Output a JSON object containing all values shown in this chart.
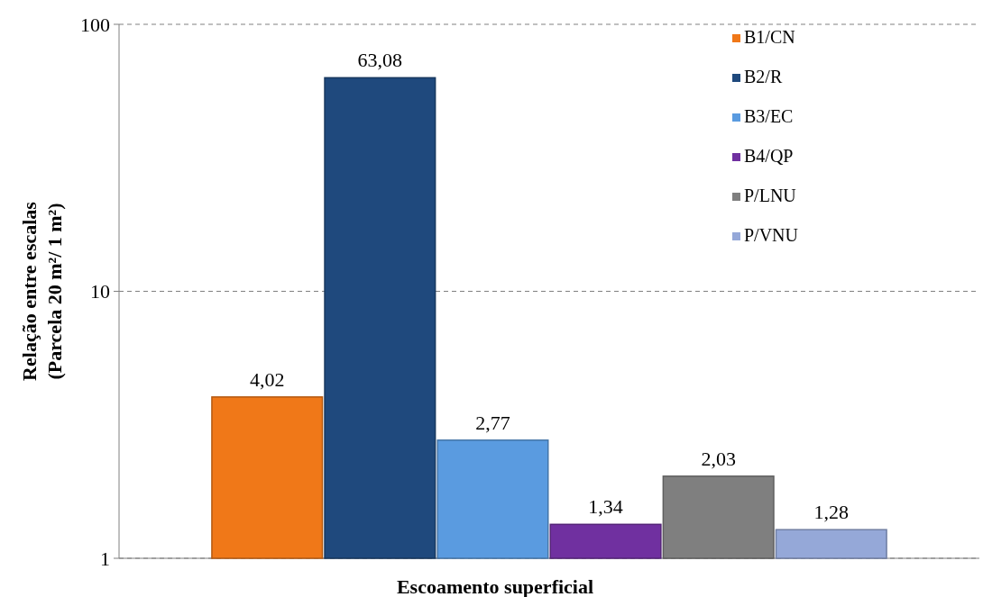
{
  "chart_data": {
    "type": "bar",
    "xlabel": "Escoamento superficial",
    "ylabel": "Relação entre escalas\n(Parcela 20 m²/ 1 m²)",
    "categories": [
      null
    ],
    "log": true,
    "ylim": [
      1,
      100
    ],
    "yticks": [
      1,
      10,
      100
    ],
    "grid": "y",
    "legend": "top right",
    "series": [
      {
        "name": "B1/CN",
        "color": "#f07818",
        "values": [
          4.02
        ],
        "value_labels": [
          "4,02"
        ]
      },
      {
        "name": "B2/R",
        "color": "#1f497d",
        "values": [
          63.08
        ],
        "value_labels": [
          "63,08"
        ]
      },
      {
        "name": "B3/EC",
        "color": "#5a9be0",
        "values": [
          2.77
        ],
        "value_labels": [
          "2,77"
        ]
      },
      {
        "name": "B4/QP",
        "color": "#7030a0",
        "values": [
          1.34
        ],
        "value_labels": [
          "1,34"
        ]
      },
      {
        "name": "P/LNU",
        "color": "#7f7f7f",
        "values": [
          2.03
        ],
        "value_labels": [
          "2,03"
        ]
      },
      {
        "name": "P/VNU",
        "color": "#95a8d8",
        "values": [
          1.28
        ],
        "value_labels": [
          "1,28"
        ]
      }
    ]
  }
}
